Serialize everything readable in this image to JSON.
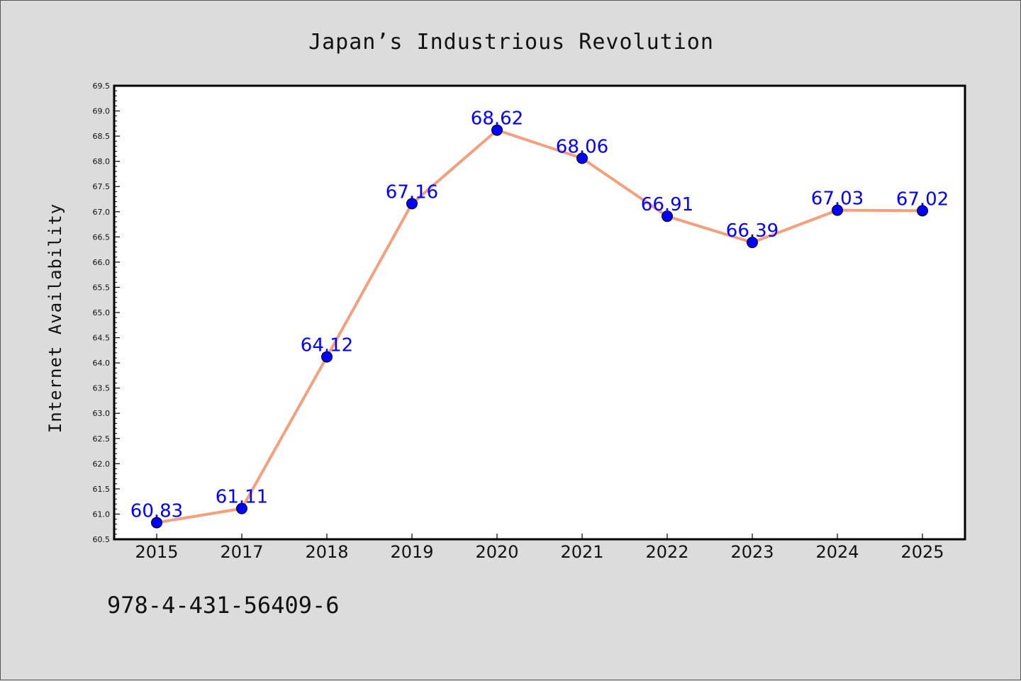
{
  "chart_data": {
    "type": "line",
    "title": "Japan’s Industrious Revolution",
    "xlabel": "",
    "ylabel": "Internet Availability",
    "categories": [
      "2015",
      "2017",
      "2018",
      "2019",
      "2020",
      "2021",
      "2022",
      "2023",
      "2024",
      "2025"
    ],
    "series": [
      {
        "values": [
          60.83,
          61.11,
          64.12,
          67.16,
          68.62,
          68.06,
          66.91,
          66.39,
          67.03,
          67.02
        ],
        "line_color": "#f4a07e",
        "marker_color": "#0000ff"
      }
    ],
    "data_labels": [
      "60.83",
      "61.11",
      "64.12",
      "67.16",
      "68.62",
      "68.06",
      "66.91",
      "66.39",
      "67.03",
      "67.02"
    ],
    "ylim": [
      60.5,
      69.5
    ],
    "yticks": [
      "60.5",
      "61.0",
      "61.5",
      "62.0",
      "62.5",
      "63.0",
      "63.5",
      "64.0",
      "64.5",
      "65.0",
      "65.5",
      "66.0",
      "66.5",
      "67.0",
      "67.5",
      "68.0",
      "68.5",
      "69.0",
      "69.5"
    ],
    "grid": false,
    "legend": "none"
  },
  "footer_text": "978-4-431-56409-6"
}
